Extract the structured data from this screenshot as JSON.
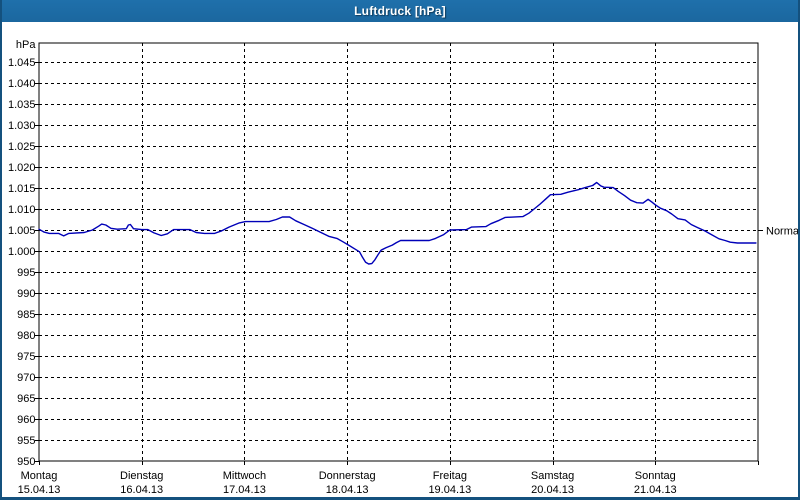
{
  "window": {
    "title": "Luftdruck [hPa]",
    "title_bar_color": "#1d6ca7",
    "border_color": "#14517e"
  },
  "chart_data": {
    "type": "line",
    "title": "Luftdruck [hPa]",
    "ylabel": "hPa",
    "grid": {
      "on": true,
      "style": "dashed",
      "color": "#000000"
    },
    "y_axis": {
      "min": 950,
      "max": 1050,
      "tick_step": 5,
      "tick_values": [
        1045,
        1040,
        1035,
        1030,
        1025,
        1020,
        1015,
        1010,
        1005,
        1000,
        995,
        990,
        985,
        980,
        975,
        970,
        965,
        960,
        955,
        950
      ],
      "tick_labels": [
        "1.045",
        "1.040",
        "1.035",
        "1.030",
        "1.025",
        "1.020",
        "1.015",
        "1.010",
        "1.005",
        "1.000",
        "995",
        "990",
        "985",
        "980",
        "975",
        "970",
        "965",
        "960",
        "955",
        "950"
      ]
    },
    "x_axis": {
      "span_days": 7,
      "days": [
        {
          "name": "Montag",
          "date": "15.04.13"
        },
        {
          "name": "Dienstag",
          "date": "16.04.13"
        },
        {
          "name": "Mittwoch",
          "date": "17.04.13"
        },
        {
          "name": "Donnerstag",
          "date": "18.04.13"
        },
        {
          "name": "Freitag",
          "date": "19.04.13"
        },
        {
          "name": "Samstag",
          "date": "20.04.13"
        },
        {
          "name": "Sonntag",
          "date": "21.04.13"
        }
      ]
    },
    "normal_marker": {
      "label": "Normal",
      "value": 1005
    },
    "series": [
      {
        "name": "Luftdruck",
        "color": "#0000b8",
        "points": [
          [
            0.0,
            1005.2
          ],
          [
            0.05,
            1004.5
          ],
          [
            0.1,
            1004.2
          ],
          [
            0.19,
            1004.2
          ],
          [
            0.24,
            1003.6
          ],
          [
            0.29,
            1004.2
          ],
          [
            0.44,
            1004.4
          ],
          [
            0.52,
            1005.0
          ],
          [
            0.58,
            1005.9
          ],
          [
            0.61,
            1006.4
          ],
          [
            0.65,
            1006.2
          ],
          [
            0.7,
            1005.4
          ],
          [
            0.76,
            1005.2
          ],
          [
            0.85,
            1005.3
          ],
          [
            0.87,
            1006.2
          ],
          [
            0.89,
            1006.3
          ],
          [
            0.92,
            1005.3
          ],
          [
            1.0,
            1005.1
          ],
          [
            1.06,
            1005.1
          ],
          [
            1.12,
            1004.3
          ],
          [
            1.19,
            1003.7
          ],
          [
            1.25,
            1004.1
          ],
          [
            1.31,
            1005.1
          ],
          [
            1.47,
            1005.1
          ],
          [
            1.53,
            1004.4
          ],
          [
            1.61,
            1004.2
          ],
          [
            1.71,
            1004.2
          ],
          [
            1.78,
            1004.8
          ],
          [
            1.85,
            1005.7
          ],
          [
            1.95,
            1006.7
          ],
          [
            2.01,
            1007.0
          ],
          [
            2.24,
            1007.0
          ],
          [
            2.31,
            1007.5
          ],
          [
            2.37,
            1008.1
          ],
          [
            2.44,
            1008.1
          ],
          [
            2.5,
            1007.2
          ],
          [
            2.58,
            1006.3
          ],
          [
            2.66,
            1005.4
          ],
          [
            2.73,
            1004.6
          ],
          [
            2.82,
            1003.5
          ],
          [
            2.9,
            1003.0
          ],
          [
            2.96,
            1002.2
          ],
          [
            3.02,
            1001.3
          ],
          [
            3.08,
            1000.4
          ],
          [
            3.12,
            999.8
          ],
          [
            3.15,
            998.5
          ],
          [
            3.18,
            997.3
          ],
          [
            3.21,
            996.9
          ],
          [
            3.24,
            997.0
          ],
          [
            3.27,
            997.9
          ],
          [
            3.3,
            999.1
          ],
          [
            3.33,
            1000.2
          ],
          [
            3.38,
            1000.8
          ],
          [
            3.44,
            1001.4
          ],
          [
            3.48,
            1002.0
          ],
          [
            3.52,
            1002.5
          ],
          [
            3.8,
            1002.5
          ],
          [
            3.86,
            1003.0
          ],
          [
            3.94,
            1003.9
          ],
          [
            4.0,
            1005.0
          ],
          [
            4.16,
            1005.1
          ],
          [
            4.21,
            1005.7
          ],
          [
            4.35,
            1005.8
          ],
          [
            4.4,
            1006.5
          ],
          [
            4.48,
            1007.3
          ],
          [
            4.54,
            1008.0
          ],
          [
            4.71,
            1008.2
          ],
          [
            4.77,
            1009.0
          ],
          [
            4.82,
            1010.0
          ],
          [
            4.88,
            1011.2
          ],
          [
            4.93,
            1012.3
          ],
          [
            4.98,
            1013.4
          ],
          [
            5.08,
            1013.5
          ],
          [
            5.15,
            1014.0
          ],
          [
            5.25,
            1014.6
          ],
          [
            5.33,
            1015.2
          ],
          [
            5.39,
            1015.6
          ],
          [
            5.43,
            1016.3
          ],
          [
            5.47,
            1015.5
          ],
          [
            5.5,
            1015.2
          ],
          [
            5.59,
            1015.1
          ],
          [
            5.64,
            1014.2
          ],
          [
            5.7,
            1013.2
          ],
          [
            5.76,
            1012.1
          ],
          [
            5.82,
            1011.5
          ],
          [
            5.88,
            1011.4
          ],
          [
            5.93,
            1012.3
          ],
          [
            5.97,
            1011.6
          ],
          [
            6.0,
            1011.0
          ],
          [
            6.05,
            1010.2
          ],
          [
            6.11,
            1009.6
          ],
          [
            6.16,
            1008.8
          ],
          [
            6.22,
            1007.7
          ],
          [
            6.29,
            1007.4
          ],
          [
            6.35,
            1006.3
          ],
          [
            6.41,
            1005.6
          ],
          [
            6.48,
            1004.8
          ],
          [
            6.54,
            1004.0
          ],
          [
            6.62,
            1002.9
          ],
          [
            6.68,
            1002.5
          ],
          [
            6.73,
            1002.1
          ],
          [
            6.8,
            1001.9
          ],
          [
            6.98,
            1001.9
          ]
        ]
      }
    ]
  }
}
